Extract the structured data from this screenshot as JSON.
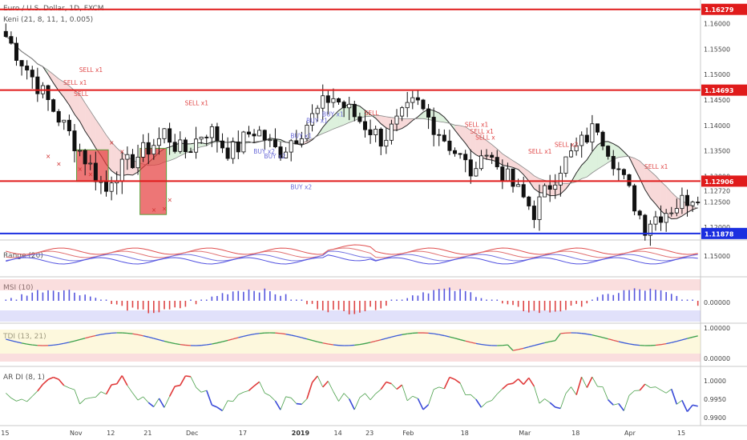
{
  "chart_data": [
    {
      "type": "candlestick",
      "title": "Euro / U.S. Dollar, 1D, FXCM",
      "indicator": "Keni (21, 8, 11, 1, 0.005)",
      "ylim": [
        1.1175,
        1.164
      ],
      "ticks": [
        "1.16000",
        "1.15500",
        "1.15000",
        "1.14500",
        "1.14000",
        "1.13500",
        "1.13000",
        "1.12500",
        "1.12000"
      ],
      "levels": [
        {
          "value": 1.16279,
          "label": "1.16279",
          "color": "#e01b1b"
        },
        {
          "value": 1.14693,
          "label": "1.14693",
          "color": "#e01b1b"
        },
        {
          "value": 1.12906,
          "label": "1.12906",
          "color": "#e01b1b"
        },
        {
          "value": 1.11878,
          "label": "1.11878",
          "color": "#1b2fe0"
        }
      ],
      "last_price": {
        "value": 1.1272,
        "label": "1.12720"
      },
      "signals": [
        {
          "text": "SELL x1",
          "i": 16,
          "price": 1.1505,
          "kind": "sell"
        },
        {
          "text": "SELL x1",
          "i": 13,
          "price": 1.148,
          "kind": "sell"
        },
        {
          "text": "SELL",
          "i": 15,
          "price": 1.1458,
          "kind": "sell"
        },
        {
          "text": "SELL x1",
          "i": 36,
          "price": 1.144,
          "kind": "sell"
        },
        {
          "text": "BUY x2",
          "i": 49,
          "price": 1.1345,
          "kind": "buy"
        },
        {
          "text": "BUY x2",
          "i": 51,
          "price": 1.1335,
          "kind": "buy"
        },
        {
          "text": "BUY x1",
          "i": 56,
          "price": 1.1375,
          "kind": "buy"
        },
        {
          "text": "BUY x1",
          "i": 59,
          "price": 1.1405,
          "kind": "buy"
        },
        {
          "text": "BUY x1",
          "i": 62,
          "price": 1.1418,
          "kind": "buy"
        },
        {
          "text": "BUY x2",
          "i": 56,
          "price": 1.1275,
          "kind": "buy"
        },
        {
          "text": "SELL",
          "i": 70,
          "price": 1.142,
          "kind": "sell"
        },
        {
          "text": "SELL x1",
          "i": 89,
          "price": 1.1397,
          "kind": "sell"
        },
        {
          "text": "SELL x1",
          "i": 90,
          "price": 1.1384,
          "kind": "sell"
        },
        {
          "text": "SELL x",
          "i": 91,
          "price": 1.1372,
          "kind": "sell"
        },
        {
          "text": "SELL x1",
          "i": 101,
          "price": 1.1345,
          "kind": "sell"
        },
        {
          "text": "SELL x2",
          "i": 106,
          "price": 1.1358,
          "kind": "sell"
        },
        {
          "text": "SELL x1",
          "i": 123,
          "price": 1.1315,
          "kind": "sell"
        }
      ]
    },
    {
      "type": "line",
      "title": "Range (20)",
      "ticks": [
        "1.15000"
      ]
    },
    {
      "type": "bar",
      "title": "MSI (10)",
      "ticks": [
        "0.00000"
      ]
    },
    {
      "type": "line",
      "title": "TDI (13, 21)",
      "ticks": [
        "1.00000",
        "0.00000"
      ]
    },
    {
      "type": "line",
      "title": "AR DI (8, 1)",
      "ticks": [
        "1.0000",
        "0.9950",
        "0.9900"
      ]
    }
  ],
  "x_axis": {
    "labels": [
      {
        "text": "15",
        "i": 0
      },
      {
        "text": "Nov",
        "i": 13
      },
      {
        "text": "12",
        "i": 20
      },
      {
        "text": "21",
        "i": 27
      },
      {
        "text": "Dec",
        "i": 35
      },
      {
        "text": "17",
        "i": 45
      },
      {
        "text": "2019",
        "i": 55
      },
      {
        "text": "14",
        "i": 63
      },
      {
        "text": "23",
        "i": 69
      },
      {
        "text": "Feb",
        "i": 76
      },
      {
        "text": "18",
        "i": 87
      },
      {
        "text": "Mar",
        "i": 98
      },
      {
        "text": "18",
        "i": 108
      },
      {
        "text": "Apr",
        "i": 118
      },
      {
        "text": "15",
        "i": 128
      }
    ]
  },
  "colors": {
    "up": "#222222",
    "down": "#111111",
    "sell": "#e04848",
    "buy": "#6a6ad8",
    "level_red": "#e01b1b",
    "level_blue": "#1b2fe0"
  }
}
